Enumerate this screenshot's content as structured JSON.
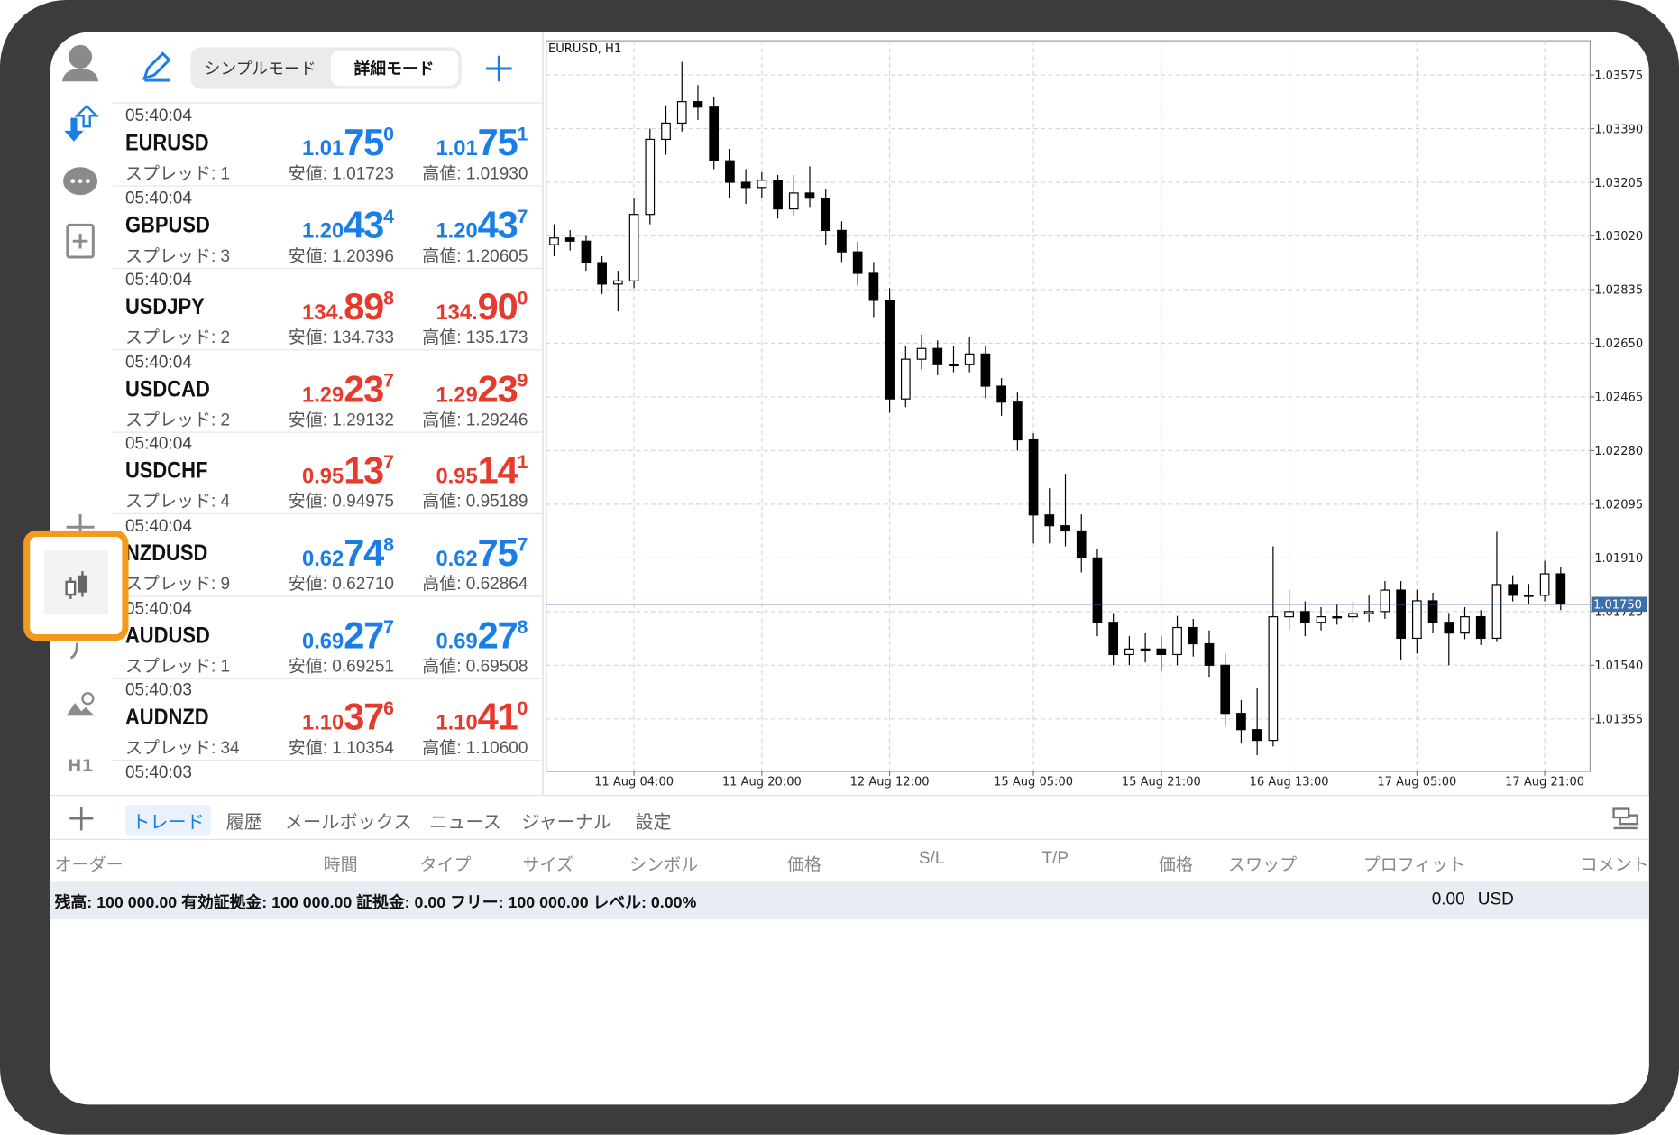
{
  "app": {
    "mode_tabs": [
      "シンプルモード",
      "詳細モード"
    ],
    "quotes": [
      {
        "time": "05:40:04",
        "symbol": "EURUSD",
        "spread": "スプレッド: 1",
        "color": "#1a7ee6",
        "bid": [
          "1.01",
          "75",
          "0"
        ],
        "ask": [
          "1.01",
          "75",
          "1"
        ],
        "low": "安値: 1.01723",
        "high": "高値: 1.01930"
      },
      {
        "time": "05:40:04",
        "symbol": "GBPUSD",
        "spread": "スプレッド: 3",
        "color": "#1a7ee6",
        "bid": [
          "1.20",
          "43",
          "4"
        ],
        "ask": [
          "1.20",
          "43",
          "7"
        ],
        "low": "安値: 1.20396",
        "high": "高値: 1.20605"
      },
      {
        "time": "05:40:04",
        "symbol": "USDJPY",
        "spread": "スプレッド: 2",
        "color": "#e53a2c",
        "bid": [
          "134.",
          "89",
          "8"
        ],
        "ask": [
          "134.",
          "90",
          "0"
        ],
        "low": "安値: 134.733",
        "high": "高値: 135.173"
      },
      {
        "time": "05:40:04",
        "symbol": "USDCAD",
        "spread": "スプレッド: 2",
        "color": "#e53a2c",
        "bid": [
          "1.29",
          "23",
          "7"
        ],
        "ask": [
          "1.29",
          "23",
          "9"
        ],
        "low": "安値: 1.29132",
        "high": "高値: 1.29246"
      },
      {
        "time": "05:40:04",
        "symbol": "USDCHF",
        "spread": "スプレッド: 4",
        "color": "#e53a2c",
        "bid": [
          "0.95",
          "13",
          "7"
        ],
        "ask": [
          "0.95",
          "14",
          "1"
        ],
        "low": "安値: 0.94975",
        "high": "高値: 0.95189"
      },
      {
        "time": "05:40:04",
        "symbol": "NZDUSD",
        "spread": "スプレッド: 9",
        "color": "#1a7ee6",
        "bid": [
          "0.62",
          "74",
          "8"
        ],
        "ask": [
          "0.62",
          "75",
          "7"
        ],
        "low": "安値: 0.62710",
        "high": "高値: 0.62864"
      },
      {
        "time": "05:40:04",
        "symbol": "AUDUSD",
        "spread": "スプレッド: 1",
        "color": "#1a7ee6",
        "bid": [
          "0.69",
          "27",
          "7"
        ],
        "ask": [
          "0.69",
          "27",
          "8"
        ],
        "low": "安値: 0.69251",
        "high": "高値: 0.69508"
      },
      {
        "time": "05:40:03",
        "symbol": "AUDNZD",
        "spread": "スプレッド: 34",
        "color": "#e53a2c",
        "bid": [
          "1.10",
          "37",
          "6"
        ],
        "ask": [
          "1.10",
          "41",
          "0"
        ],
        "low": "安値: 1.10354",
        "high": "高値: 1.10600"
      }
    ],
    "partial_quote_time": "05:40:03",
    "sidebar_timeframe": "H1",
    "bottom_tabs": [
      "トレード",
      "履歴",
      "メールボックス",
      "ニュース",
      "ジャーナル",
      "設定"
    ],
    "columns": [
      "オーダー",
      "時間",
      "タイプ",
      "サイズ",
      "シンボル",
      "価格",
      "S/L",
      "T/P",
      "価格",
      "スワップ",
      "プロフィット",
      "コメント"
    ],
    "balance": "残高: 100 000.00 有効証拠金: 100 000.00 証拠金: 0.00 フリー: 100 000.00 レベル: 0.00%",
    "profit": "0.00",
    "currency": "USD"
  },
  "chart_data": {
    "type": "candlestick",
    "title": "EURUSD, H1",
    "categories": [
      null,
      null,
      null,
      null,
      null,
      "11 Aug 04:00",
      null,
      null,
      null,
      null,
      null,
      null,
      null,
      "11 Aug 20:00",
      null,
      null,
      null,
      null,
      null,
      null,
      null,
      "12 Aug 12:00",
      null,
      null,
      null,
      null,
      null,
      null,
      null,
      null,
      "15 Aug 05:00",
      null,
      null,
      null,
      null,
      null,
      null,
      null,
      "15 Aug 21:00",
      null,
      null,
      null,
      null,
      null,
      null,
      null,
      "16 Aug 13:00",
      null,
      null,
      null,
      null,
      null,
      null,
      null,
      "17 Aug 05:00",
      null,
      null,
      null,
      null,
      null,
      null,
      null,
      "17 Aug 21:00",
      null
    ],
    "open": [
      1.0299,
      1.03013,
      1.03002,
      1.02928,
      1.02854,
      1.02865,
      1.03094,
      1.03353,
      1.03409,
      1.03483,
      1.03464,
      1.03279,
      1.03205,
      1.03187,
      1.03212,
      1.03113,
      1.03168,
      1.0315,
      1.03039,
      1.02965,
      1.02891,
      1.02798,
      1.02458,
      1.02595,
      1.02632,
      1.02576,
      1.02576,
      1.02613,
      1.02502,
      1.02447,
      1.02317,
      1.02058,
      1.02021,
      1.02003,
      1.0191,
      1.01688,
      1.01577,
      1.01596,
      1.01596,
      1.01577,
      1.0167,
      1.01614,
      1.0154,
      1.01374,
      1.01318,
      1.01281,
      1.01707,
      1.01725,
      1.01688,
      1.01707,
      1.01707,
      1.01718,
      1.01725,
      1.01799,
      1.01633,
      1.01762,
      1.01688,
      1.01651,
      1.01707,
      1.01633,
      1.01818,
      1.01781,
      1.01781,
      1.01855
    ],
    "high": [
      1.0306,
      1.0304,
      1.0302,
      1.0295,
      1.029,
      1.0315,
      1.0339,
      1.0347,
      1.0362,
      1.0354,
      1.035,
      1.0332,
      1.0325,
      1.0324,
      1.0323,
      1.0323,
      1.0326,
      1.0318,
      1.0307,
      1.03,
      1.0293,
      1.0284,
      1.0264,
      1.0268,
      1.0266,
      1.0264,
      1.0267,
      1.0264,
      1.0253,
      1.0248,
      1.0234,
      1.0215,
      1.022,
      1.0206,
      1.0194,
      1.0172,
      1.0164,
      1.0165,
      1.0164,
      1.0171,
      1.017,
      1.0166,
      1.0158,
      1.0142,
      1.0146,
      1.0195,
      1.018,
      1.0176,
      1.0174,
      1.0175,
      1.0176,
      1.0178,
      1.0183,
      1.0183,
      1.018,
      1.0179,
      1.0172,
      1.0174,
      1.0173,
      1.02,
      1.0185,
      1.0182,
      1.019,
      1.0188
    ],
    "low": [
      1.0295,
      1.0297,
      1.029,
      1.0282,
      1.0276,
      1.0284,
      1.0306,
      1.033,
      1.0338,
      1.0342,
      1.0325,
      1.0315,
      1.0313,
      1.0315,
      1.0308,
      1.0309,
      1.0312,
      1.0299,
      1.0293,
      1.0285,
      1.0274,
      1.0241,
      1.0243,
      1.0256,
      1.0254,
      1.0255,
      1.0255,
      1.0246,
      1.024,
      1.0228,
      1.0196,
      1.0196,
      1.0195,
      1.0186,
      1.0164,
      1.0154,
      1.0154,
      1.0155,
      1.0152,
      1.0154,
      1.0157,
      1.015,
      1.0133,
      1.0127,
      1.0123,
      1.0126,
      1.0166,
      1.0164,
      1.0166,
      1.0168,
      1.0169,
      1.0169,
      1.017,
      1.0156,
      1.0158,
      1.0165,
      1.0154,
      1.0163,
      1.0161,
      1.0162,
      1.0176,
      1.0175,
      1.0176,
      1.0173
    ],
    "close": [
      1.03013,
      1.03002,
      1.02928,
      1.02854,
      1.02865,
      1.03094,
      1.03353,
      1.03409,
      1.03483,
      1.03464,
      1.03279,
      1.03205,
      1.03187,
      1.03212,
      1.03113,
      1.03168,
      1.0315,
      1.03039,
      1.02965,
      1.02891,
      1.02798,
      1.02458,
      1.02595,
      1.02632,
      1.02576,
      1.02576,
      1.02613,
      1.02502,
      1.02447,
      1.02317,
      1.02058,
      1.02021,
      1.02003,
      1.0191,
      1.01688,
      1.01577,
      1.01596,
      1.01596,
      1.01577,
      1.0167,
      1.01614,
      1.0154,
      1.01374,
      1.01318,
      1.01281,
      1.01707,
      1.01725,
      1.01688,
      1.01707,
      1.01707,
      1.01718,
      1.01725,
      1.01799,
      1.01633,
      1.01762,
      1.01688,
      1.01651,
      1.01707,
      1.01633,
      1.01818,
      1.01781,
      1.01781,
      1.01855,
      1.0175
    ],
    "ylim": [
      1.01174,
      1.03693
    ],
    "yticks": [
      {
        "value": 1.03575,
        "label": "1.03575"
      },
      {
        "value": 1.0339,
        "label": "1.03390"
      },
      {
        "value": 1.03205,
        "label": "1.03205"
      },
      {
        "value": 1.0302,
        "label": "1.03020"
      },
      {
        "value": 1.02835,
        "label": "1.02835"
      },
      {
        "value": 1.0265,
        "label": "1.02650"
      },
      {
        "value": 1.02465,
        "label": "1.02465"
      },
      {
        "value": 1.0228,
        "label": "1.02280"
      },
      {
        "value": 1.02095,
        "label": "1.02095"
      },
      {
        "value": 1.0191,
        "label": "1.01910"
      },
      {
        "value": 1.01725,
        "label": "1.01725"
      },
      {
        "value": 1.0154,
        "label": "1.01540"
      },
      {
        "value": 1.01355,
        "label": "1.01355"
      }
    ],
    "current_price": {
      "value": 1.0175,
      "label": "1.01750"
    },
    "grid": true,
    "up_color": "#ffffff",
    "down_color": "#000000"
  }
}
